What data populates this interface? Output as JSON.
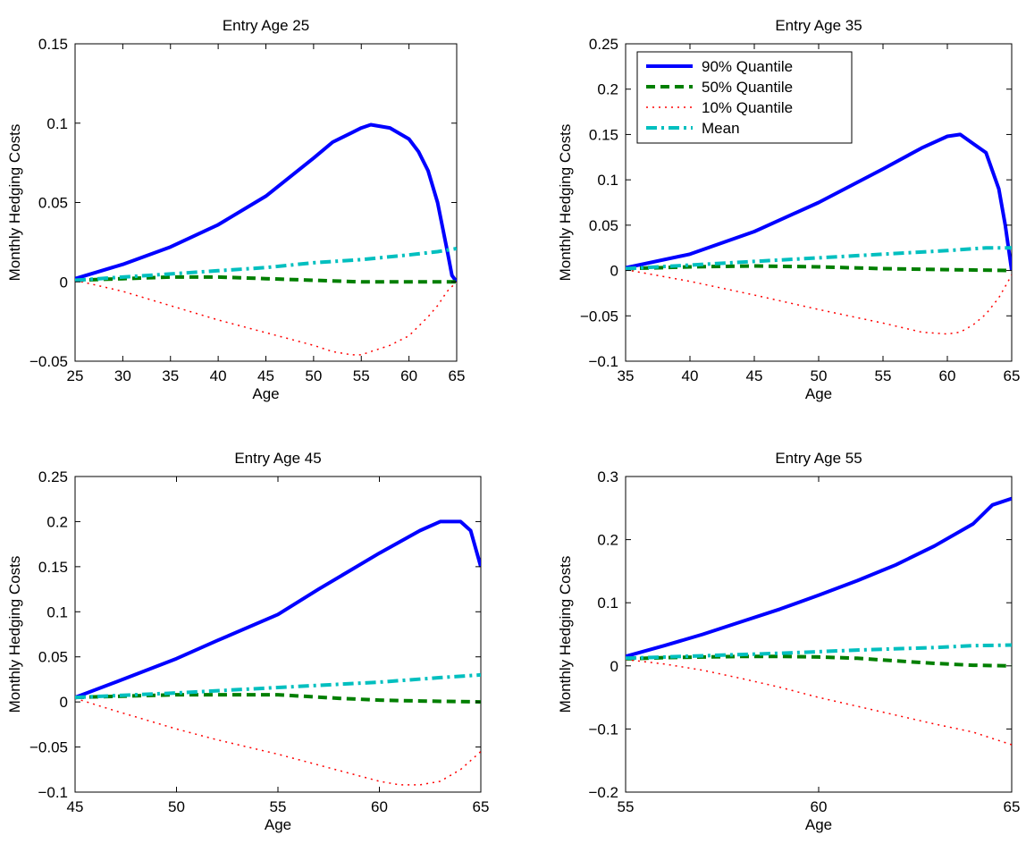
{
  "figure": {
    "colors": {
      "q90": "#0000ff",
      "q50": "#007f00",
      "q10": "#ff0000",
      "mean": "#00bfbf"
    }
  },
  "chart_data": [
    {
      "type": "line",
      "title": "Entry Age 25",
      "xlabel": "Age",
      "ylabel": "Monthly Hedging Costs",
      "xlim": [
        25,
        65
      ],
      "ylim": [
        -0.05,
        0.15
      ],
      "xticks": [
        "25",
        "30",
        "35",
        "40",
        "45",
        "50",
        "55",
        "60",
        "65"
      ],
      "yticks": [
        "0.15",
        "0.1",
        "0.05",
        "0",
        "−0.05"
      ],
      "grid": false,
      "legend": null,
      "series": [
        {
          "key": "q90",
          "x": [
            25,
            30,
            35,
            40,
            45,
            50,
            52,
            54,
            55,
            56,
            58,
            60,
            61,
            62,
            63,
            64,
            64.5,
            65
          ],
          "y": [
            0.002,
            0.011,
            0.022,
            0.036,
            0.054,
            0.078,
            0.088,
            0.094,
            0.097,
            0.099,
            0.097,
            0.09,
            0.082,
            0.07,
            0.05,
            0.02,
            0.004,
            0
          ]
        },
        {
          "key": "q50",
          "x": [
            25,
            30,
            35,
            40,
            45,
            50,
            55,
            60,
            65
          ],
          "y": [
            0.001,
            0.002,
            0.003,
            0.003,
            0.002,
            0.001,
            0,
            0,
            0
          ]
        },
        {
          "key": "q10",
          "x": [
            25,
            30,
            35,
            40,
            45,
            50,
            52,
            54,
            55,
            56,
            58,
            60,
            62,
            63,
            64,
            65
          ],
          "y": [
            0.001,
            -0.006,
            -0.015,
            -0.024,
            -0.032,
            -0.04,
            -0.044,
            -0.046,
            -0.046,
            -0.044,
            -0.04,
            -0.034,
            -0.022,
            -0.015,
            -0.006,
            0
          ]
        },
        {
          "key": "mean",
          "x": [
            25,
            30,
            35,
            40,
            45,
            50,
            55,
            60,
            63,
            65
          ],
          "y": [
            0.001,
            0.003,
            0.005,
            0.007,
            0.009,
            0.012,
            0.014,
            0.017,
            0.019,
            0.021
          ]
        }
      ]
    },
    {
      "type": "line",
      "title": "Entry Age 35",
      "xlabel": "Age",
      "ylabel": "Monthly Hedging Costs",
      "xlim": [
        35,
        65
      ],
      "ylim": [
        -0.1,
        0.25
      ],
      "xticks": [
        "35",
        "40",
        "45",
        "50",
        "55",
        "60",
        "65"
      ],
      "yticks": [
        "0.25",
        "0.2",
        "0.15",
        "0.1",
        "0.05",
        "0",
        "−0.05",
        "−0.1"
      ],
      "grid": false,
      "legend": {
        "placement": "top-left",
        "entries": [
          {
            "key": "q90",
            "label": "90% Quantile"
          },
          {
            "key": "q50",
            "label": "50% Quantile"
          },
          {
            "key": "q10",
            "label": "10% Quantile"
          },
          {
            "key": "mean",
            "label": "Mean"
          }
        ]
      },
      "series": [
        {
          "key": "q90",
          "x": [
            35,
            40,
            45,
            50,
            55,
            58,
            60,
            61,
            62,
            63,
            64,
            64.5,
            65
          ],
          "y": [
            0.003,
            0.018,
            0.043,
            0.075,
            0.112,
            0.135,
            0.148,
            0.15,
            0.14,
            0.13,
            0.09,
            0.05,
            0
          ]
        },
        {
          "key": "q50",
          "x": [
            35,
            40,
            45,
            50,
            55,
            60,
            65
          ],
          "y": [
            0.002,
            0.004,
            0.005,
            0.004,
            0.002,
            0.001,
            0
          ]
        },
        {
          "key": "q10",
          "x": [
            35,
            40,
            45,
            50,
            55,
            58,
            60,
            61,
            62,
            63,
            64,
            65
          ],
          "y": [
            0.001,
            -0.012,
            -0.027,
            -0.043,
            -0.058,
            -0.068,
            -0.07,
            -0.068,
            -0.06,
            -0.048,
            -0.03,
            -0.005
          ]
        },
        {
          "key": "mean",
          "x": [
            35,
            40,
            45,
            50,
            55,
            60,
            63,
            65
          ],
          "y": [
            0.002,
            0.006,
            0.01,
            0.014,
            0.018,
            0.022,
            0.025,
            0.025
          ]
        }
      ]
    },
    {
      "type": "line",
      "title": "Entry Age 45",
      "xlabel": "Age",
      "ylabel": "Monthly Hedging Costs",
      "xlim": [
        45,
        65
      ],
      "ylim": [
        -0.1,
        0.25
      ],
      "xticks": [
        "45",
        "50",
        "55",
        "60",
        "65"
      ],
      "yticks": [
        "0.25",
        "0.2",
        "0.15",
        "0.1",
        "0.05",
        "0",
        "−0.05",
        "−0.1"
      ],
      "grid": false,
      "legend": null,
      "series": [
        {
          "key": "q90",
          "x": [
            45,
            47,
            50,
            52,
            55,
            57,
            60,
            62,
            63,
            64,
            64.5,
            65
          ],
          "y": [
            0.005,
            0.022,
            0.048,
            0.068,
            0.097,
            0.125,
            0.165,
            0.19,
            0.2,
            0.2,
            0.19,
            0.15
          ]
        },
        {
          "key": "q50",
          "x": [
            45,
            50,
            55,
            58,
            60,
            62,
            65
          ],
          "y": [
            0.005,
            0.008,
            0.008,
            0.004,
            0.002,
            0.001,
            0
          ]
        },
        {
          "key": "q10",
          "x": [
            45,
            47,
            50,
            52,
            55,
            57,
            60,
            61,
            62,
            63,
            64,
            65
          ],
          "y": [
            0.004,
            -0.01,
            -0.03,
            -0.042,
            -0.058,
            -0.07,
            -0.088,
            -0.092,
            -0.092,
            -0.088,
            -0.075,
            -0.055
          ]
        },
        {
          "key": "mean",
          "x": [
            45,
            50,
            55,
            60,
            63,
            65
          ],
          "y": [
            0.005,
            0.01,
            0.016,
            0.022,
            0.027,
            0.03
          ]
        }
      ]
    },
    {
      "type": "line",
      "title": "Entry Age 55",
      "xlabel": "Age",
      "ylabel": "Monthly Hedging Costs",
      "xlim": [
        55,
        65
      ],
      "ylim": [
        -0.2,
        0.3
      ],
      "xticks": [
        "55",
        "60",
        "65"
      ],
      "yticks": [
        "0.3",
        "0.2",
        "0.1",
        "0",
        "−0.1",
        "−0.2"
      ],
      "grid": false,
      "legend": null,
      "series": [
        {
          "key": "q90",
          "x": [
            55,
            56,
            57,
            58,
            59,
            60,
            61,
            62,
            63,
            64,
            64.5,
            65
          ],
          "y": [
            0.015,
            0.032,
            0.05,
            0.07,
            0.09,
            0.112,
            0.135,
            0.16,
            0.19,
            0.225,
            0.255,
            0.265
          ]
        },
        {
          "key": "q50",
          "x": [
            55,
            56,
            57,
            58,
            59,
            60,
            61,
            62,
            63,
            64,
            65
          ],
          "y": [
            0.011,
            0.013,
            0.014,
            0.015,
            0.015,
            0.014,
            0.012,
            0.008,
            0.004,
            0.001,
            0
          ]
        },
        {
          "key": "q10",
          "x": [
            55,
            56,
            57,
            58,
            59,
            60,
            61,
            62,
            63,
            64,
            64.5,
            65
          ],
          "y": [
            0.01,
            0.003,
            -0.007,
            -0.02,
            -0.034,
            -0.05,
            -0.064,
            -0.078,
            -0.092,
            -0.105,
            -0.115,
            -0.125
          ]
        },
        {
          "key": "mean",
          "x": [
            55,
            57,
            59,
            61,
            63,
            64,
            65
          ],
          "y": [
            0.012,
            0.016,
            0.02,
            0.025,
            0.029,
            0.032,
            0.033
          ]
        }
      ]
    }
  ]
}
